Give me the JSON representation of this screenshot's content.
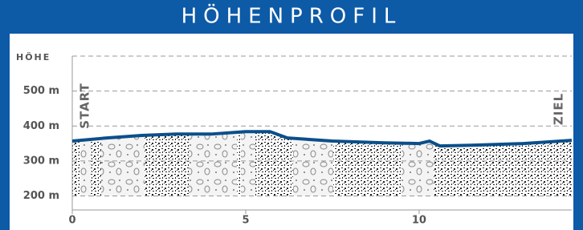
{
  "chart_data": {
    "type": "line",
    "title": "HÖHENPROFIL",
    "y_label": "HÖHE",
    "start_label": "START",
    "end_label": "ZIEL",
    "x": [
      0,
      1,
      2,
      3,
      4,
      5,
      5.7,
      6.2,
      7.5,
      9,
      10,
      10.3,
      10.6,
      11.5,
      13,
      14.4
    ],
    "series": [
      {
        "color": "#0b4f8a",
        "values": [
          357,
          366,
          373,
          377,
          377,
          384,
          384,
          366,
          357,
          352,
          350,
          357,
          343,
          345,
          350,
          359
        ]
      }
    ],
    "xlim": [
      0,
      14.4
    ],
    "xticks": [
      0,
      5,
      10
    ],
    "ylim": [
      160,
      600
    ],
    "yticks": [
      {
        "value": 200,
        "label": "200 m"
      },
      {
        "value": 300,
        "label": "300 m"
      },
      {
        "value": 400,
        "label": "400 m"
      },
      {
        "value": 500,
        "label": "500 m"
      }
    ],
    "grid": true
  }
}
